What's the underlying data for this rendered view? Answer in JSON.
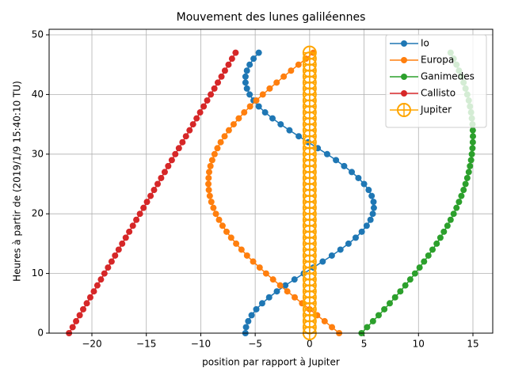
{
  "chart_data": {
    "type": "line",
    "title": "Mouvement des lunes galiléennes",
    "x_label": "position par rapport à Jupiter",
    "y_label": "Heures à partir de (2019/1/9 15:40:10 TU)",
    "y": [
      0,
      1,
      2,
      3,
      4,
      5,
      6,
      7,
      8,
      9,
      10,
      11,
      12,
      13,
      14,
      15,
      16,
      17,
      18,
      19,
      20,
      21,
      22,
      23,
      24,
      25,
      26,
      27,
      28,
      29,
      30,
      31,
      32,
      33,
      34,
      35,
      36,
      37,
      38,
      39,
      40,
      41,
      42,
      43,
      44,
      45,
      46,
      47
    ],
    "series": [
      {
        "name": "Io",
        "color": "#1f77b4",
        "marker": "circle",
        "x": [
          -5.9,
          -5.84,
          -5.64,
          -5.33,
          -4.9,
          -4.36,
          -3.72,
          -3.01,
          -2.23,
          -1.39,
          -0.54,
          0.34,
          1.2,
          2.04,
          2.83,
          3.57,
          4.23,
          4.79,
          5.24,
          5.59,
          5.8,
          5.9,
          5.87,
          5.7,
          5.42,
          5.0,
          4.48,
          3.87,
          3.17,
          2.42,
          1.61,
          0.75,
          -0.13,
          -1.0,
          -1.85,
          -2.66,
          -3.41,
          -4.09,
          -4.67,
          -5.15,
          -5.51,
          -5.76,
          -5.89,
          -5.89,
          -5.76,
          -5.51,
          -5.15,
          -4.67
        ]
      },
      {
        "name": "Europa",
        "color": "#ff7f0e",
        "marker": "circle",
        "x": [
          2.71,
          2.05,
          1.38,
          0.69,
          0.0,
          -0.69,
          -1.37,
          -2.05,
          -2.71,
          -3.36,
          -4.0,
          -4.59,
          -5.19,
          -5.75,
          -6.26,
          -6.75,
          -7.21,
          -7.63,
          -8.0,
          -8.32,
          -8.61,
          -8.84,
          -9.03,
          -9.17,
          -9.26,
          -9.3,
          -9.28,
          -9.23,
          -9.11,
          -8.95,
          -8.73,
          -8.47,
          -8.17,
          -7.81,
          -7.42,
          -6.98,
          -6.51,
          -6.01,
          -5.47,
          -4.9,
          -4.3,
          -3.67,
          -3.03,
          -2.38,
          -1.71,
          -1.02,
          -0.34,
          0.34
        ]
      },
      {
        "name": "Ganimedes",
        "color": "#2ca02c",
        "marker": "circle",
        "x": [
          4.77,
          5.28,
          5.82,
          6.34,
          6.86,
          7.36,
          7.85,
          8.33,
          8.79,
          9.24,
          9.68,
          10.1,
          10.51,
          10.91,
          11.29,
          11.67,
          12.01,
          12.33,
          12.66,
          12.95,
          13.23,
          13.49,
          13.72,
          13.94,
          14.14,
          14.32,
          14.48,
          14.62,
          14.73,
          14.83,
          14.9,
          14.96,
          14.99,
          15.0,
          14.99,
          14.96,
          14.9,
          14.83,
          14.73,
          14.62,
          14.48,
          14.32,
          14.14,
          13.94,
          13.72,
          13.49,
          13.23,
          12.95
        ]
      },
      {
        "name": "Callisto",
        "color": "#d62728",
        "marker": "circle",
        "x": [
          -22.1,
          -21.77,
          -21.45,
          -21.12,
          -20.8,
          -20.47,
          -20.15,
          -19.82,
          -19.5,
          -19.17,
          -18.85,
          -18.52,
          -18.19,
          -17.87,
          -17.54,
          -17.22,
          -16.89,
          -16.57,
          -16.24,
          -15.92,
          -15.59,
          -15.26,
          -14.94,
          -14.61,
          -14.29,
          -13.96,
          -13.64,
          -13.31,
          -12.99,
          -12.66,
          -12.34,
          -12.01,
          -11.68,
          -11.36,
          -11.03,
          -10.71,
          -10.38,
          -10.06,
          -9.73,
          -9.41,
          -9.08,
          -8.75,
          -8.43,
          -8.1,
          -7.78,
          -7.45,
          -7.13,
          -6.8
        ]
      },
      {
        "name": "Jupiter",
        "color": "#ffa500",
        "marker": "hollow-large",
        "x": [
          0,
          0,
          0,
          0,
          0,
          0,
          0,
          0,
          0,
          0,
          0,
          0,
          0,
          0,
          0,
          0,
          0,
          0,
          0,
          0,
          0,
          0,
          0,
          0,
          0,
          0,
          0,
          0,
          0,
          0,
          0,
          0,
          0,
          0,
          0,
          0,
          0,
          0,
          0,
          0,
          0,
          0,
          0,
          0,
          0,
          0,
          0,
          0
        ]
      }
    ],
    "xlim": [
      -23.93,
      16.82
    ],
    "ylim": [
      0,
      50.93
    ],
    "xticks": [
      {
        "value": -20,
        "label": "−20"
      },
      {
        "value": -15,
        "label": "−15"
      },
      {
        "value": -10,
        "label": "−10"
      },
      {
        "value": -5,
        "label": "−5"
      },
      0,
      5,
      10,
      15
    ],
    "yticks": [
      0,
      10,
      20,
      30,
      40,
      50
    ],
    "grid": true,
    "legend": "upper right"
  }
}
